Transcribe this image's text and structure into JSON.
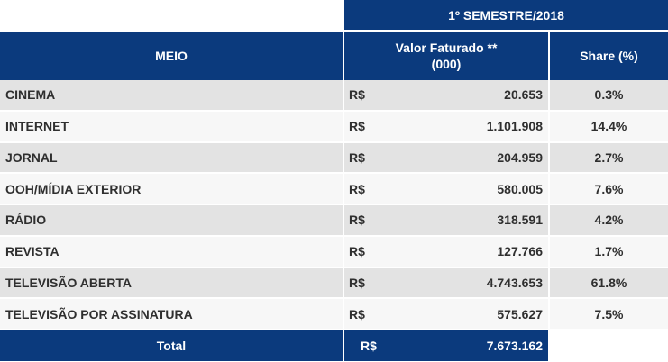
{
  "header": {
    "period": "1º SEMESTRE/2018",
    "col_meio": "MEIO",
    "col_valor_line1": "Valor Faturado **",
    "col_valor_line2": "(000)",
    "col_share": "Share (%)"
  },
  "rows": [
    {
      "meio": "CINEMA",
      "currency": "R$",
      "valor": "20.653",
      "share": "0.3%"
    },
    {
      "meio": "INTERNET",
      "currency": "R$",
      "valor": "1.101.908",
      "share": "14.4%"
    },
    {
      "meio": "JORNAL",
      "currency": "R$",
      "valor": "204.959",
      "share": "2.7%"
    },
    {
      "meio": "OOH/MÍDIA EXTERIOR",
      "currency": "R$",
      "valor": "580.005",
      "share": "7.6%"
    },
    {
      "meio": "RÁDIO",
      "currency": "R$",
      "valor": "318.591",
      "share": "4.2%"
    },
    {
      "meio": "REVISTA",
      "currency": "R$",
      "valor": "127.766",
      "share": "1.7%"
    },
    {
      "meio": "TELEVISÃO ABERTA",
      "currency": "R$",
      "valor": "4.743.653",
      "share": "61.8%"
    },
    {
      "meio": "TELEVISÃO POR ASSINATURA",
      "currency": "R$",
      "valor": "575.627",
      "share": "7.5%"
    }
  ],
  "total": {
    "label": "Total",
    "currency": "R$",
    "valor": "7.673.162"
  }
}
